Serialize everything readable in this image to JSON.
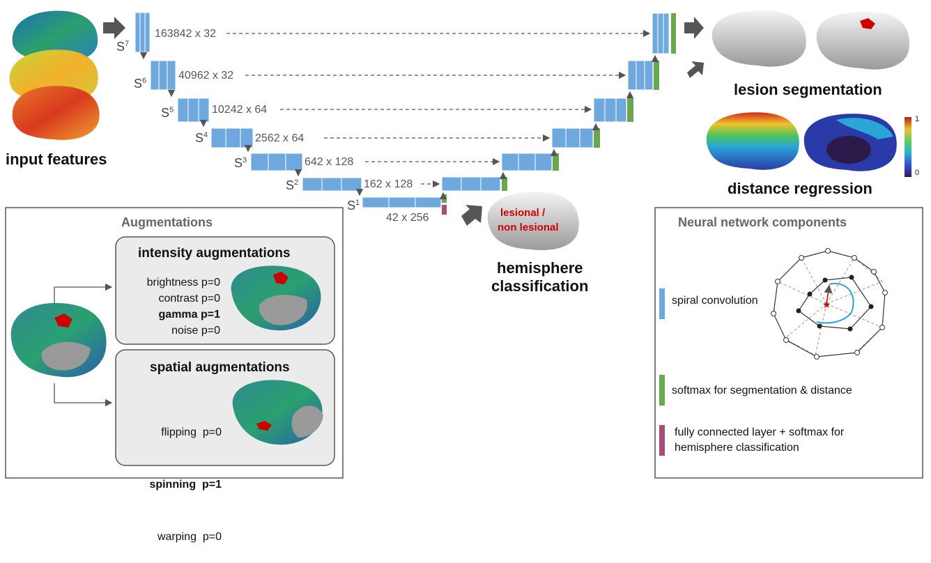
{
  "input": {
    "label": "input features"
  },
  "scales": [
    {
      "name": "S",
      "sup": "7",
      "size": "163842 x 32"
    },
    {
      "name": "S",
      "sup": "6",
      "size": "40962 x 32"
    },
    {
      "name": "S",
      "sup": "5",
      "size": "10242 x 64"
    },
    {
      "name": "S",
      "sup": "4",
      "size": "2562 x 64"
    },
    {
      "name": "S",
      "sup": "3",
      "size": "642 x 128"
    },
    {
      "name": "S",
      "sup": "2",
      "size": "162 x 128"
    },
    {
      "name": "S",
      "sup": "1",
      "size": "42 x 256"
    }
  ],
  "outputs": {
    "lesion_segmentation": "lesion segmentation",
    "distance_regression": "distance regression",
    "colorbar_max": "1",
    "colorbar_min": "0",
    "classification_text_1": "lesional /",
    "classification_text_2": "non lesional",
    "hemisphere_classification_1": "hemisphere",
    "hemisphere_classification_2": "classification"
  },
  "augmentations": {
    "title": "Augmentations",
    "intensity": {
      "title": "intensity augmentations",
      "items": [
        "brightness p=0",
        "contrast p=0",
        "gamma p=1",
        "noise p=0"
      ]
    },
    "spatial": {
      "title": "spatial augmentations",
      "items": [
        "flipping  p=0",
        "spinning  p=1",
        "warping  p=0"
      ]
    }
  },
  "components": {
    "title": "Neural network components",
    "spiral": "spiral convolution",
    "softmax": "softmax for segmentation & distance",
    "fc_1": "fully connected layer + softmax for",
    "fc_2": "hemisphere classification"
  },
  "colors": {
    "block_blue": "#6fa8dc",
    "softmax_green": "#6aa84f",
    "fc_purple": "#a64d79",
    "lesion_red": "#cc0000",
    "arrow_gray": "#555555"
  }
}
